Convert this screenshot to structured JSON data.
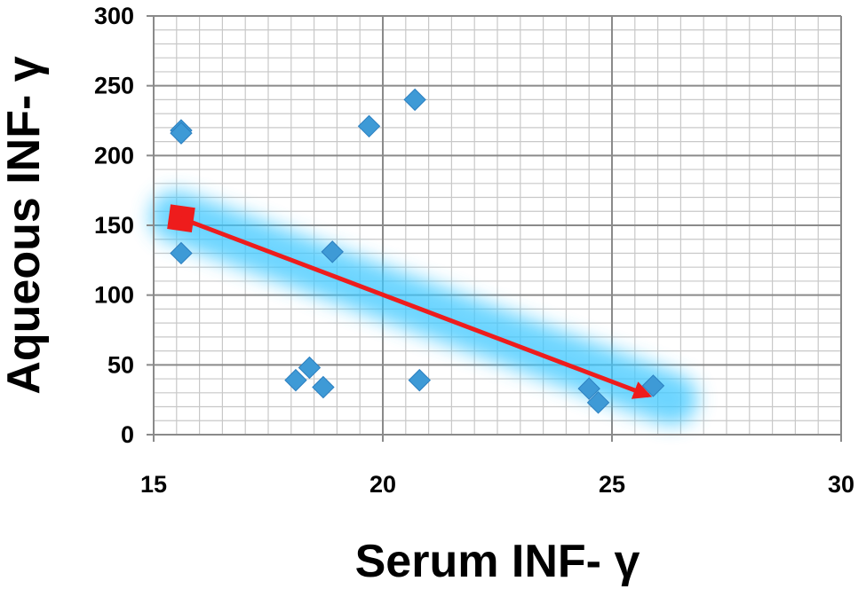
{
  "chart_data": {
    "type": "scatter",
    "title": "",
    "xlabel": "Serum INF- γ",
    "ylabel": "Aqueous INF- γ",
    "xlim": [
      15,
      30
    ],
    "ylim": [
      0,
      300
    ],
    "x_ticks": [
      15,
      20,
      25,
      30
    ],
    "y_ticks": [
      0,
      50,
      100,
      150,
      200,
      250,
      300
    ],
    "x_minor_step": 0.5,
    "y_minor_step": 10,
    "grid": true,
    "legend": "none",
    "series": [
      {
        "marker": "diamond",
        "color": "#3e9ad6",
        "points": [
          {
            "x": 15.6,
            "y": 218
          },
          {
            "x": 15.6,
            "y": 216
          },
          {
            "x": 15.6,
            "y": 130
          },
          {
            "x": 18.1,
            "y": 39
          },
          {
            "x": 18.4,
            "y": 48
          },
          {
            "x": 18.7,
            "y": 34
          },
          {
            "x": 18.9,
            "y": 131
          },
          {
            "x": 19.7,
            "y": 221
          },
          {
            "x": 20.7,
            "y": 240
          },
          {
            "x": 20.8,
            "y": 39
          },
          {
            "x": 24.5,
            "y": 33
          },
          {
            "x": 24.7,
            "y": 23
          },
          {
            "x": 25.9,
            "y": 35
          }
        ]
      }
    ],
    "annotation": {
      "type": "arrow",
      "color": "#ee1c1c",
      "glow_color": "#3ec8ff",
      "start": {
        "x": 15.6,
        "y": 155
      },
      "end": {
        "x": 25.8,
        "y": 28
      }
    }
  }
}
